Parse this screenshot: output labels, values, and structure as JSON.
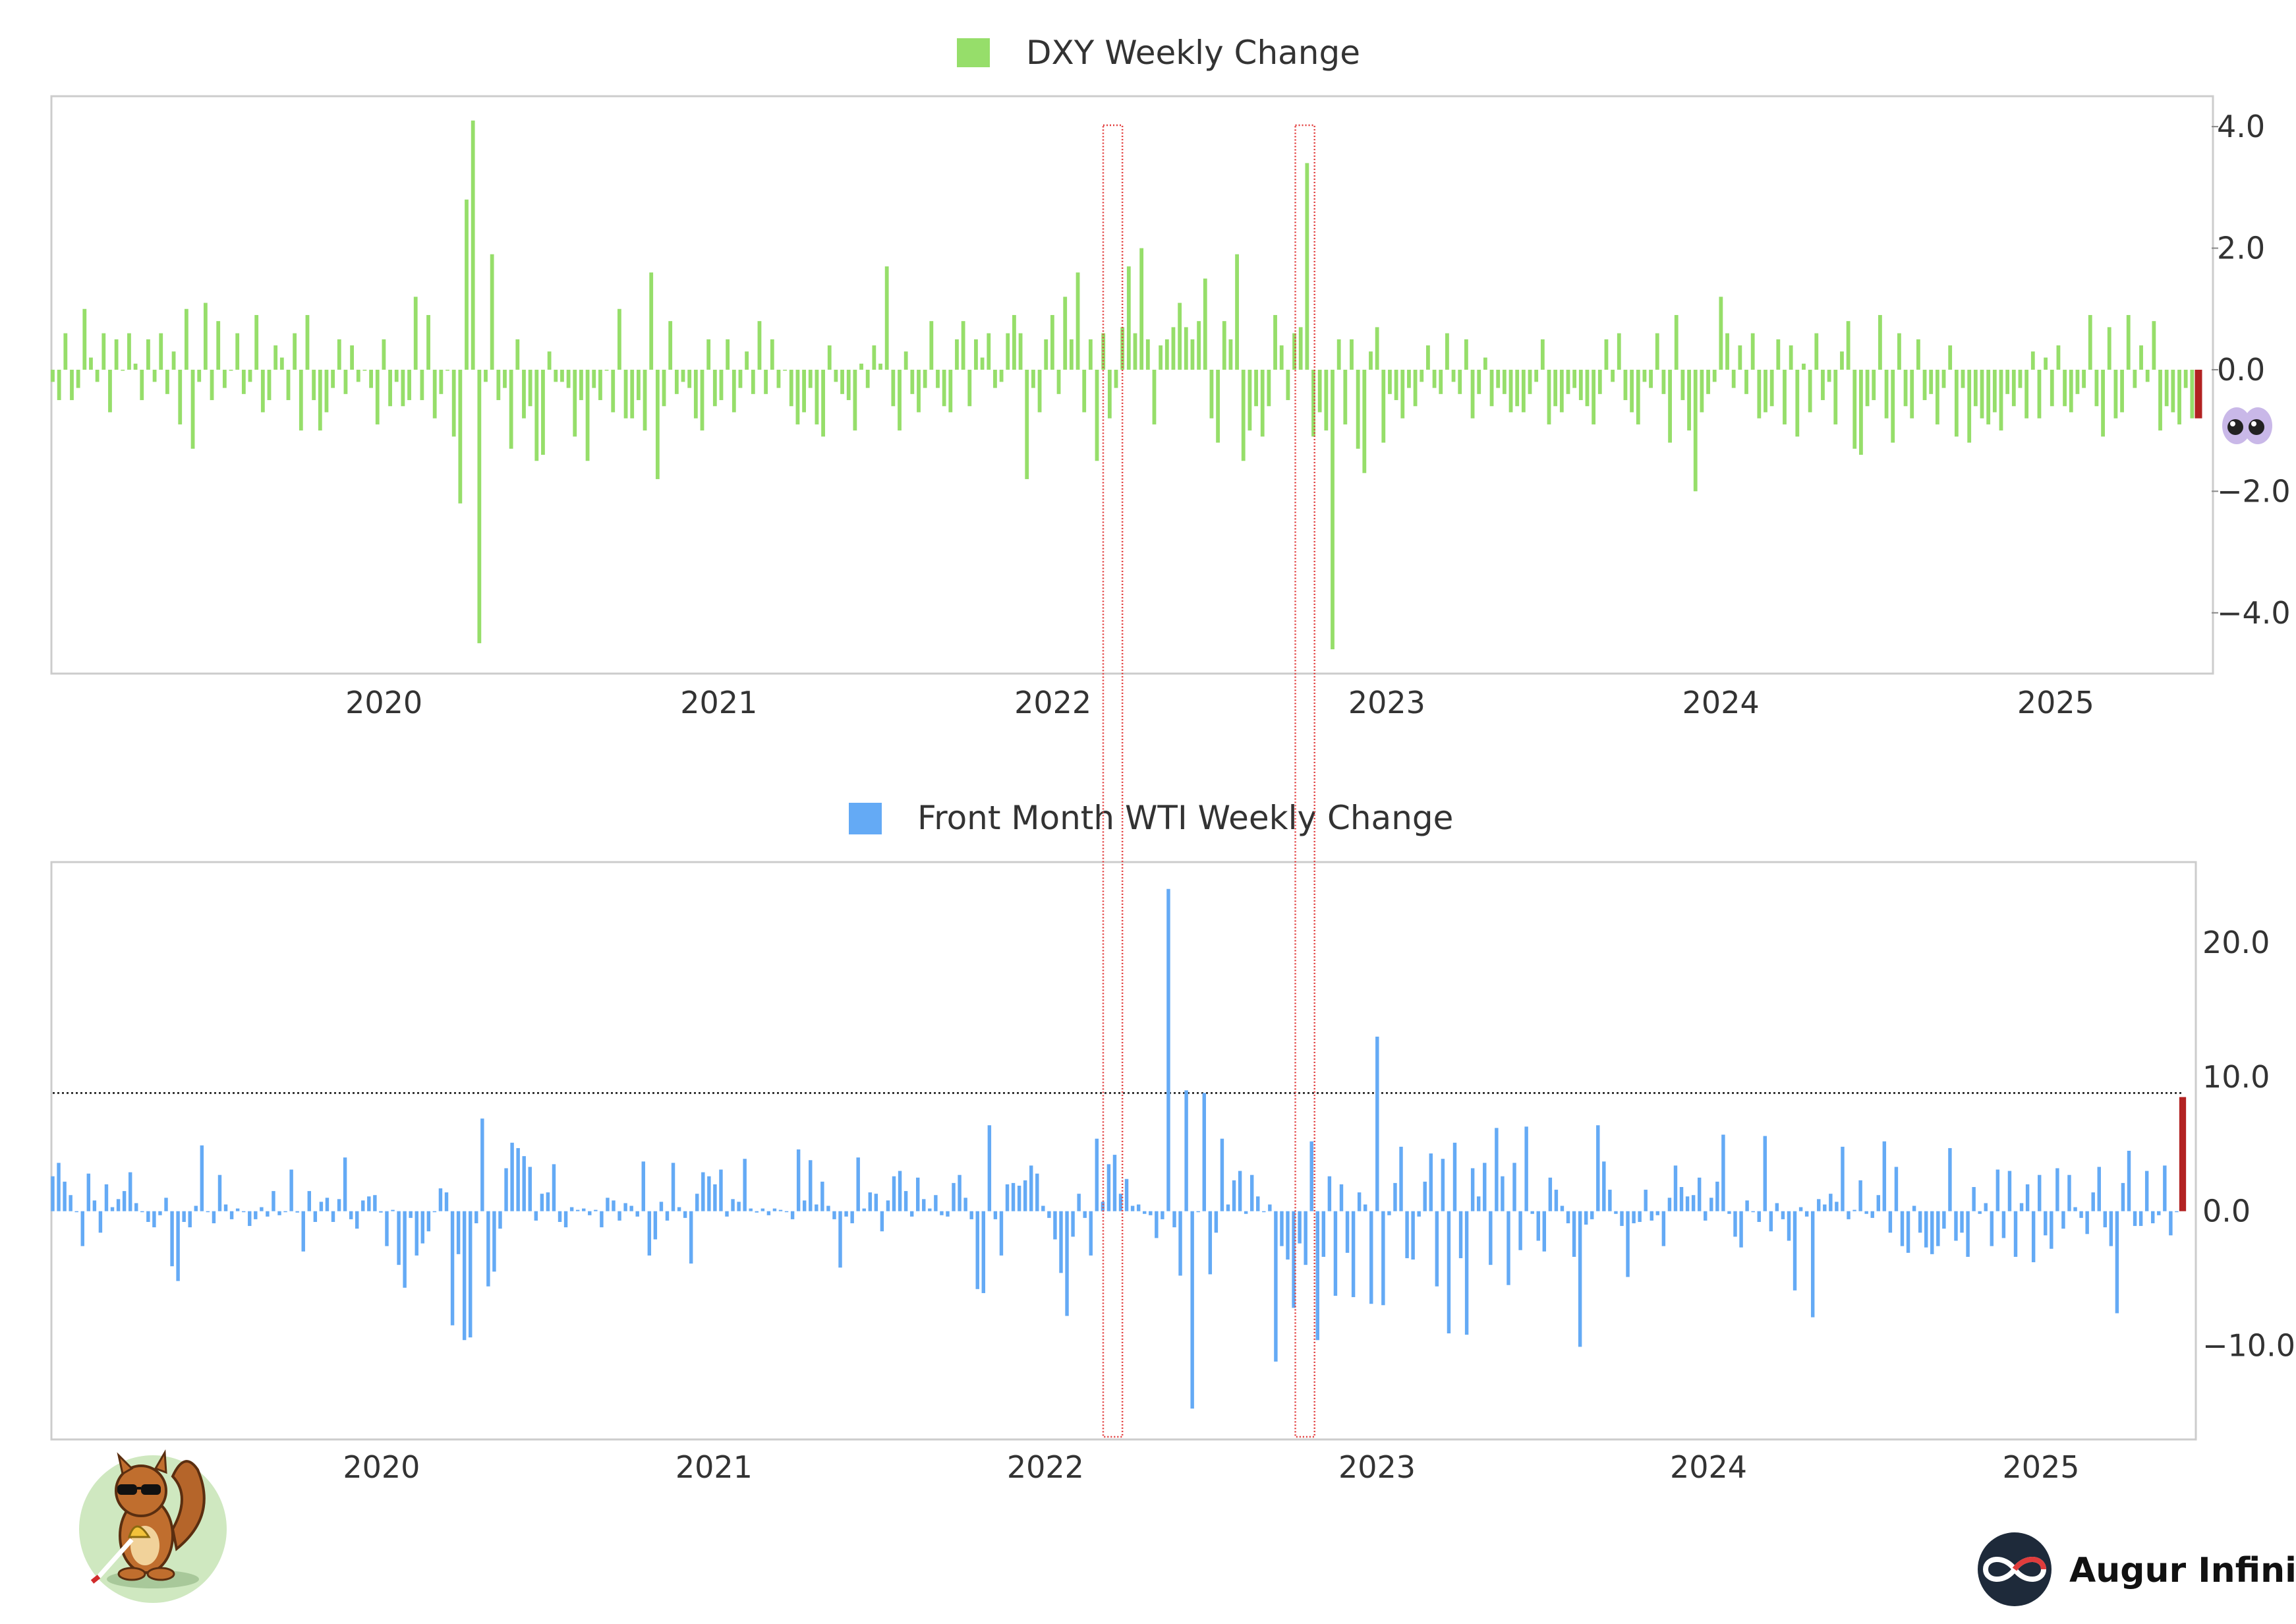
{
  "chart_data": [
    {
      "type": "bar",
      "legend": "DXY Weekly Change",
      "color": "#96de6a",
      "latest_bar_color": "#b22222",
      "x_start": "2019-01-04",
      "x_end": "2025-06-06",
      "x_tick_labels": [
        "2020",
        "2021",
        "2022",
        "2023",
        "2024",
        "2025"
      ],
      "ylim": [
        -5.0,
        4.5
      ],
      "y_ticks": [
        4.0,
        2.0,
        0.0,
        -2.0,
        -4.0
      ],
      "y_tick_labels": [
        "4.0",
        "2.0",
        "0.0",
        "−2.0",
        "−4.0"
      ],
      "y_axis_side": "right",
      "grid": false,
      "series": [
        {
          "values": [
            -0.2,
            -0.5,
            0.6,
            -0.5,
            -0.3,
            1.0,
            0.2,
            -0.2,
            0.6,
            -0.7,
            0.5,
            0.0,
            0.6,
            0.1,
            -0.5,
            0.5,
            -0.2,
            0.6,
            -0.4,
            0.3,
            -0.9,
            1.0,
            -1.3,
            -0.2,
            1.1,
            -0.5,
            0.8,
            -0.3,
            0.0,
            0.6,
            -0.4,
            -0.2,
            0.9,
            -0.7,
            -0.5,
            0.4,
            0.2,
            -0.5,
            0.6,
            -1.0,
            0.9,
            -0.5,
            -1.0,
            -0.7,
            -0.3,
            0.5,
            -0.4,
            0.4,
            -0.2,
            0.0,
            -0.3,
            -0.9,
            0.5,
            -0.6,
            -0.2,
            -0.6,
            -0.5,
            1.2,
            -0.5,
            0.9,
            -0.8,
            -0.4,
            0.0,
            -1.1,
            -2.2,
            2.8,
            4.1,
            -4.5,
            -0.2,
            1.9,
            -0.5,
            -0.3,
            -1.3,
            0.5,
            -0.8,
            -0.6,
            -1.5,
            -1.4,
            0.3,
            -0.2,
            -0.2,
            -0.3,
            -1.1,
            -0.5,
            -1.5,
            -0.3,
            -0.5,
            0.0,
            -0.7,
            1.0,
            -0.8,
            -0.8,
            -0.5,
            -1.0,
            1.6,
            -1.8,
            -0.6,
            0.8,
            -0.4,
            -0.2,
            -0.3,
            -0.8,
            -1.0,
            0.5,
            -0.6,
            -0.5,
            0.5,
            -0.7,
            -0.3,
            0.3,
            -0.4,
            0.8,
            -0.4,
            0.5,
            -0.3,
            0.0,
            -0.6,
            -0.9,
            -0.7,
            -0.3,
            -0.9,
            -1.1,
            0.4,
            -0.2,
            -0.4,
            -0.5,
            -1.0,
            0.1,
            -0.3,
            0.4,
            0.1,
            1.7,
            -0.6,
            -1.0,
            0.3,
            -0.4,
            -0.7,
            -0.3,
            0.8,
            -0.3,
            -0.6,
            -0.7,
            0.5,
            0.8,
            -0.6,
            0.5,
            0.2,
            0.6,
            -0.3,
            -0.2,
            0.6,
            0.9,
            0.6,
            -1.8,
            -0.3,
            -0.7,
            0.5,
            0.9,
            -0.4,
            1.2,
            0.5,
            1.6,
            -0.7,
            0.5,
            -1.5,
            0.6,
            -0.8,
            -0.3,
            0.7,
            1.7,
            0.6,
            2.0,
            0.5,
            -0.9,
            0.4,
            0.5,
            0.7,
            1.1,
            0.7,
            0.5,
            0.8,
            1.5,
            -0.8,
            -1.2,
            0.8,
            0.5,
            1.9,
            -1.5,
            -1.0,
            -0.6,
            -1.1,
            -0.6,
            0.9,
            0.4,
            -0.5,
            0.6,
            0.7,
            3.4,
            -1.1,
            -0.7,
            -1.0,
            -4.6,
            0.5,
            -0.9,
            0.5,
            -1.3,
            -1.7,
            0.3,
            0.7,
            -1.2,
            -0.4,
            -0.5,
            -0.8,
            -0.3,
            -0.6,
            -0.2,
            0.4,
            -0.3,
            -0.4,
            0.6,
            -0.2,
            -0.4,
            0.5,
            -0.8,
            -0.4,
            0.2,
            -0.6,
            -0.3,
            -0.4,
            -0.7,
            -0.6,
            -0.7,
            -0.4,
            -0.2,
            0.5,
            -0.9,
            -0.6,
            -0.7,
            -0.4,
            -0.3,
            -0.5,
            -0.6,
            -0.9,
            -0.4,
            0.5,
            -0.2,
            0.6,
            -0.5,
            -0.7,
            -0.9,
            -0.2,
            -0.3,
            0.6,
            -0.4,
            -1.2,
            0.9,
            -0.5,
            -1.0,
            -2.0,
            -0.7,
            -0.4,
            -0.2,
            1.2,
            0.6,
            -0.3,
            0.4,
            -0.4,
            0.6,
            -0.8,
            -0.7,
            -0.6,
            0.5,
            -0.9,
            0.4,
            -1.1,
            0.1,
            -0.7,
            0.6,
            -0.5,
            -0.2,
            -0.9,
            0.3,
            0.8,
            -1.3,
            -1.4,
            -0.6,
            -0.5,
            0.9,
            -0.8,
            -1.2,
            0.6,
            -0.6,
            -0.8,
            0.5,
            -0.5,
            -0.4,
            -0.9,
            -0.3,
            0.4,
            -1.1,
            -0.3,
            -1.2,
            -0.6,
            -0.8,
            -0.9,
            -0.7,
            -1.0,
            -0.4,
            -0.6,
            -0.3,
            -0.8,
            0.3,
            -0.8,
            0.2,
            -0.6,
            0.4,
            -0.6,
            -0.7,
            -0.4,
            -0.3,
            0.9,
            -0.6,
            -1.1,
            0.7,
            -0.8,
            -0.7,
            0.9,
            -0.3,
            0.4,
            -0.2,
            0.8,
            -1.0,
            -0.6,
            -0.7,
            -0.9,
            -0.3,
            -0.8,
            -0.8
          ]
        }
      ]
    },
    {
      "type": "bar",
      "legend": "Front Month WTI Weekly Change",
      "color": "#64aaf5",
      "latest_bar_color": "#b22222",
      "x_start": "2019-01-04",
      "x_end": "2025-06-06",
      "x_tick_labels": [
        "2020",
        "2021",
        "2022",
        "2023",
        "2024",
        "2025"
      ],
      "ylim": [
        -17.0,
        26.0
      ],
      "y_ticks": [
        20.0,
        10.0,
        0.0,
        -10.0
      ],
      "y_tick_labels": [
        "20.0",
        "10.0",
        "0.0",
        "−10.0"
      ],
      "y_axis_side": "right",
      "grid": false,
      "threshold_line": 8.8,
      "series": [
        {
          "values": [
            2.6,
            3.6,
            2.2,
            1.2,
            0.0,
            -2.6,
            2.8,
            0.8,
            -1.6,
            2.0,
            0.3,
            0.9,
            1.5,
            2.9,
            0.6,
            0.0,
            -0.8,
            -1.2,
            -0.3,
            1.0,
            -4.1,
            -5.2,
            -0.8,
            -1.2,
            0.4,
            4.9,
            0.0,
            -0.9,
            2.7,
            0.5,
            -0.6,
            0.2,
            0.0,
            -1.1,
            -0.6,
            0.3,
            -0.4,
            1.5,
            -0.3,
            0.0,
            3.1,
            -0.1,
            -3.0,
            1.5,
            -0.8,
            0.7,
            1.0,
            -0.8,
            0.9,
            4.0,
            -0.6,
            -1.3,
            0.8,
            1.1,
            1.2,
            -0.1,
            -2.6,
            0.1,
            -4.0,
            -5.7,
            -0.5,
            -3.3,
            -2.4,
            -1.5,
            0.0,
            1.7,
            1.4,
            -8.5,
            -3.2,
            -9.6,
            -9.4,
            -0.9,
            6.9,
            -5.6,
            -4.5,
            -1.3,
            3.2,
            5.1,
            4.7,
            4.1,
            3.3,
            -0.7,
            1.3,
            1.4,
            3.5,
            -0.8,
            -1.2,
            0.3,
            0.1,
            0.2,
            -0.3,
            0.1,
            -1.2,
            1.0,
            0.8,
            -0.7,
            0.6,
            0.4,
            -0.4,
            3.7,
            -3.3,
            -2.1,
            0.7,
            -0.7,
            3.6,
            0.3,
            -0.5,
            -3.9,
            1.3,
            2.9,
            2.6,
            2.0,
            3.1,
            -0.4,
            0.9,
            0.7,
            3.9,
            0.2,
            -0.1,
            0.2,
            -0.3,
            0.2,
            0.1,
            0.0,
            -0.6,
            4.6,
            0.8,
            3.8,
            0.5,
            2.2,
            0.4,
            -0.6,
            -4.2,
            -0.4,
            -0.9,
            4.0,
            0.2,
            1.4,
            1.3,
            -1.5,
            0.8,
            2.6,
            3.0,
            1.5,
            -0.4,
            2.5,
            0.9,
            0.2,
            1.2,
            -0.3,
            -0.4,
            2.1,
            2.7,
            1.0,
            -0.6,
            -5.8,
            -6.1,
            6.4,
            -0.6,
            -3.3,
            2.0,
            2.1,
            1.9,
            2.3,
            3.4,
            2.8,
            0.4,
            -0.5,
            -2.1,
            -4.6,
            -7.8,
            -1.9,
            1.3,
            -0.5,
            -3.3,
            5.4,
            0.7,
            3.5,
            4.2,
            1.3,
            2.4,
            0.4,
            0.5,
            -0.2,
            -0.3,
            -2.0,
            -0.6,
            24.0,
            -1.2,
            -4.8,
            9.0,
            -14.7,
            0.0,
            8.8,
            -4.7,
            -1.6,
            5.4,
            0.5,
            2.3,
            3.0,
            -0.2,
            2.7,
            1.1,
            0.0,
            0.5,
            -11.2,
            -2.6,
            -3.6,
            -7.2,
            -2.4,
            -4.0,
            5.2,
            -9.6,
            -3.4,
            2.6,
            -6.3,
            2.0,
            -3.1,
            -6.4,
            1.4,
            0.5,
            -6.9,
            13.0,
            -7.0,
            -0.3,
            2.1,
            4.8,
            -3.5,
            -3.6,
            -0.4,
            2.2,
            4.3,
            -5.6,
            3.9,
            -9.1,
            5.1,
            -3.5,
            -9.2,
            3.2,
            1.1,
            3.6,
            -4.0,
            6.2,
            2.6,
            -5.5,
            3.6,
            -2.9,
            6.3,
            -0.2,
            -2.2,
            -3.0,
            2.5,
            1.6,
            0.4,
            -0.9,
            -3.4,
            -10.1,
            -1.0,
            -0.6,
            6.4,
            3.7,
            1.6,
            -0.2,
            -1.1,
            -4.9,
            -0.9,
            -0.8,
            1.6,
            -0.7,
            -0.3,
            -2.6,
            1.0,
            3.4,
            1.8,
            1.1,
            1.2,
            2.5,
            -0.7,
            1.0,
            2.2,
            5.7,
            -0.2,
            -1.9,
            -2.7,
            0.8,
            0.0,
            -0.8,
            5.6,
            -1.5,
            0.6,
            -0.6,
            -2.2,
            -5.9,
            0.3,
            -0.4,
            -7.9,
            0.9,
            0.5,
            1.3,
            0.7,
            4.8,
            -0.6,
            0.1,
            2.3,
            -0.2,
            -0.5,
            1.2,
            5.2,
            -1.6,
            3.3,
            -2.6,
            -3.1,
            0.4,
            -1.6,
            -2.7,
            -3.2,
            -2.6,
            -1.3,
            4.7,
            -2.2,
            -1.6,
            -3.4,
            1.8,
            -0.2,
            0.6,
            -2.6,
            3.1,
            -2.0,
            3.0,
            -3.4,
            0.6,
            2.0,
            -3.8,
            2.7,
            -1.8,
            -2.8,
            3.2,
            -1.3,
            2.7,
            0.3,
            -0.5,
            -1.7,
            1.4,
            3.3,
            -1.2,
            -2.6,
            -7.6,
            2.1,
            4.5,
            -1.1,
            -1.1,
            3.0,
            -0.9,
            -0.3,
            3.4,
            -1.8,
            0.0,
            8.5
          ]
        }
      ]
    }
  ],
  "highlight_periods": [
    {
      "start": "2022-02-25",
      "end": "2022-03-18"
    },
    {
      "start": "2022-09-23",
      "end": "2022-10-14"
    }
  ],
  "brand": {
    "name": "Augur Infinity",
    "logo_icon": "infinity-icon",
    "mascot_icon": "squirrel-mascot-icon"
  }
}
